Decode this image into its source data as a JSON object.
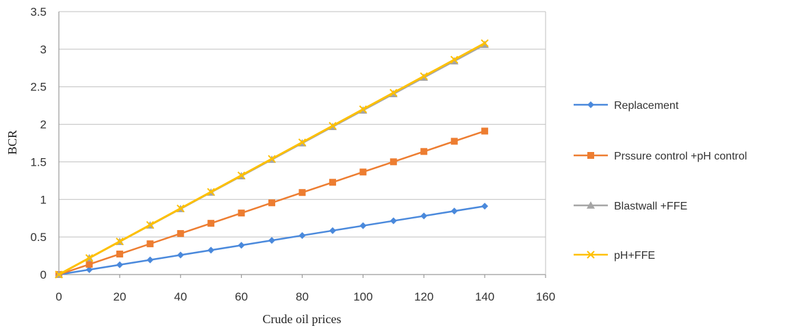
{
  "chart_data": {
    "type": "line",
    "title": "",
    "xlabel": "Crude oil prices",
    "ylabel": "BCR",
    "xlim": [
      0,
      160
    ],
    "ylim": [
      0,
      3.5
    ],
    "x_ticks": [
      "0",
      "20",
      "40",
      "60",
      "80",
      "100",
      "120",
      "140",
      "160"
    ],
    "y_ticks": [
      "0",
      "0.5",
      "1",
      "1.5",
      "2",
      "2.5",
      "3",
      "3.5"
    ],
    "grid": "horizontal",
    "legend_position": "right",
    "x": [
      0,
      10,
      20,
      30,
      40,
      50,
      60,
      70,
      80,
      90,
      100,
      110,
      120,
      130,
      140
    ],
    "series": [
      {
        "name": "Replacement",
        "color": "#4a89dc",
        "marker": "diamond",
        "values": [
          0,
          0.065,
          0.13,
          0.195,
          0.26,
          0.325,
          0.39,
          0.455,
          0.52,
          0.585,
          0.65,
          0.715,
          0.78,
          0.845,
          0.91
        ]
      },
      {
        "name": "Prssure control +pH control",
        "color": "#ed7d31",
        "marker": "square",
        "values": [
          0,
          0.136,
          0.273,
          0.409,
          0.546,
          0.682,
          0.819,
          0.955,
          1.092,
          1.228,
          1.365,
          1.501,
          1.638,
          1.774,
          1.91
        ]
      },
      {
        "name": "Blastwall +FFE",
        "color": "#a5a5a5",
        "marker": "triangle",
        "values": [
          0,
          0.219,
          0.437,
          0.656,
          0.874,
          1.093,
          1.311,
          1.53,
          1.749,
          1.967,
          2.186,
          2.404,
          2.623,
          2.841,
          3.06
        ]
      },
      {
        "name": "pH+FFE",
        "color": "#ffc000",
        "marker": "x",
        "values": [
          0,
          0.22,
          0.44,
          0.66,
          0.88,
          1.1,
          1.32,
          1.54,
          1.76,
          1.98,
          2.2,
          2.42,
          2.64,
          2.86,
          3.08
        ]
      }
    ]
  }
}
